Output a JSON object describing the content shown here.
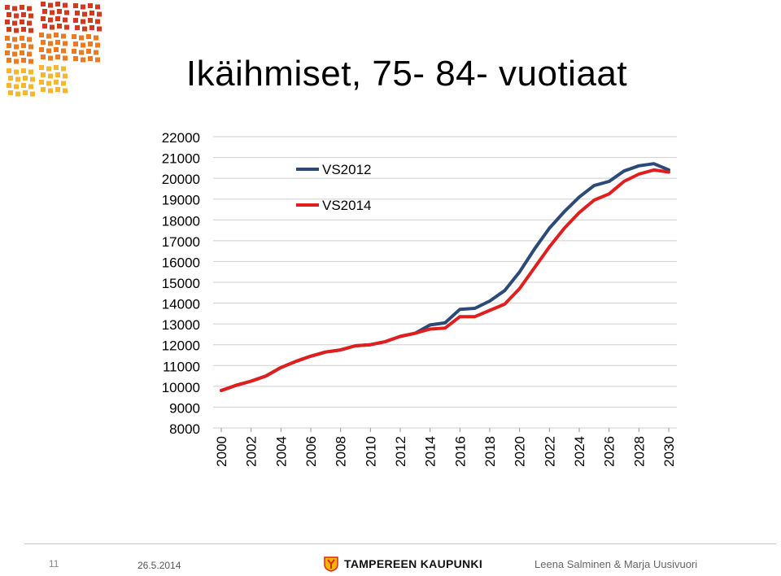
{
  "slide": {
    "title": "Ikäihmiset, 75- 84- vuotiaat",
    "page_number": "11",
    "date": "26.5.2014",
    "organization": "TAMPEREEN KAUPUNKI",
    "authors": "Leena Salminen & Marja Uusivuori"
  },
  "colors": {
    "VS2012": "#2c4a77",
    "VS2014": "#e01e1e",
    "grid": "#cfcfcf",
    "logo_red": "#d23a1e",
    "logo_orange": "#ec7a22",
    "logo_yellow": "#f7b62d"
  },
  "icons": {
    "logo": "tampere-grid-logo-icon",
    "brand": "tampere-crest-icon"
  },
  "chart_data": {
    "type": "line",
    "title": "Ikäihmiset, 75- 84- vuotiaat",
    "xlabel": "",
    "ylabel": "",
    "ylim": [
      8000,
      22000
    ],
    "yticks": [
      8000,
      9000,
      10000,
      11000,
      12000,
      13000,
      14000,
      15000,
      16000,
      17000,
      18000,
      19000,
      20000,
      21000,
      22000
    ],
    "xticks": [
      "2000",
      "2002",
      "2004",
      "2006",
      "2008",
      "2010",
      "2012",
      "2014",
      "2016",
      "2018",
      "2020",
      "2022",
      "2024",
      "2026",
      "2028",
      "2030"
    ],
    "grid": true,
    "legend_position": "top-left",
    "x": [
      2000,
      2001,
      2002,
      2003,
      2004,
      2005,
      2006,
      2007,
      2008,
      2009,
      2010,
      2011,
      2012,
      2013,
      2014,
      2015,
      2016,
      2017,
      2018,
      2019,
      2020,
      2021,
      2022,
      2023,
      2024,
      2025,
      2026,
      2027,
      2028,
      2029,
      2030
    ],
    "series": [
      {
        "name": "VS2012",
        "values": [
          9800,
          10050,
          10250,
          10500,
          10900,
          11200,
          11450,
          11650,
          11750,
          11950,
          12000,
          12150,
          12400,
          12550,
          12950,
          13050,
          13700,
          13750,
          14100,
          14600,
          15500,
          16600,
          17600,
          18400,
          19100,
          19650,
          19850,
          20350,
          20600,
          20700,
          20400
        ]
      },
      {
        "name": "VS2014",
        "values": [
          9800,
          10050,
          10250,
          10500,
          10900,
          11200,
          11450,
          11650,
          11750,
          11950,
          12000,
          12150,
          12400,
          12550,
          12750,
          12800,
          13350,
          13350,
          13650,
          13950,
          14700,
          15700,
          16700,
          17600,
          18350,
          18950,
          19250,
          19850,
          20200,
          20400,
          20300
        ]
      }
    ]
  }
}
